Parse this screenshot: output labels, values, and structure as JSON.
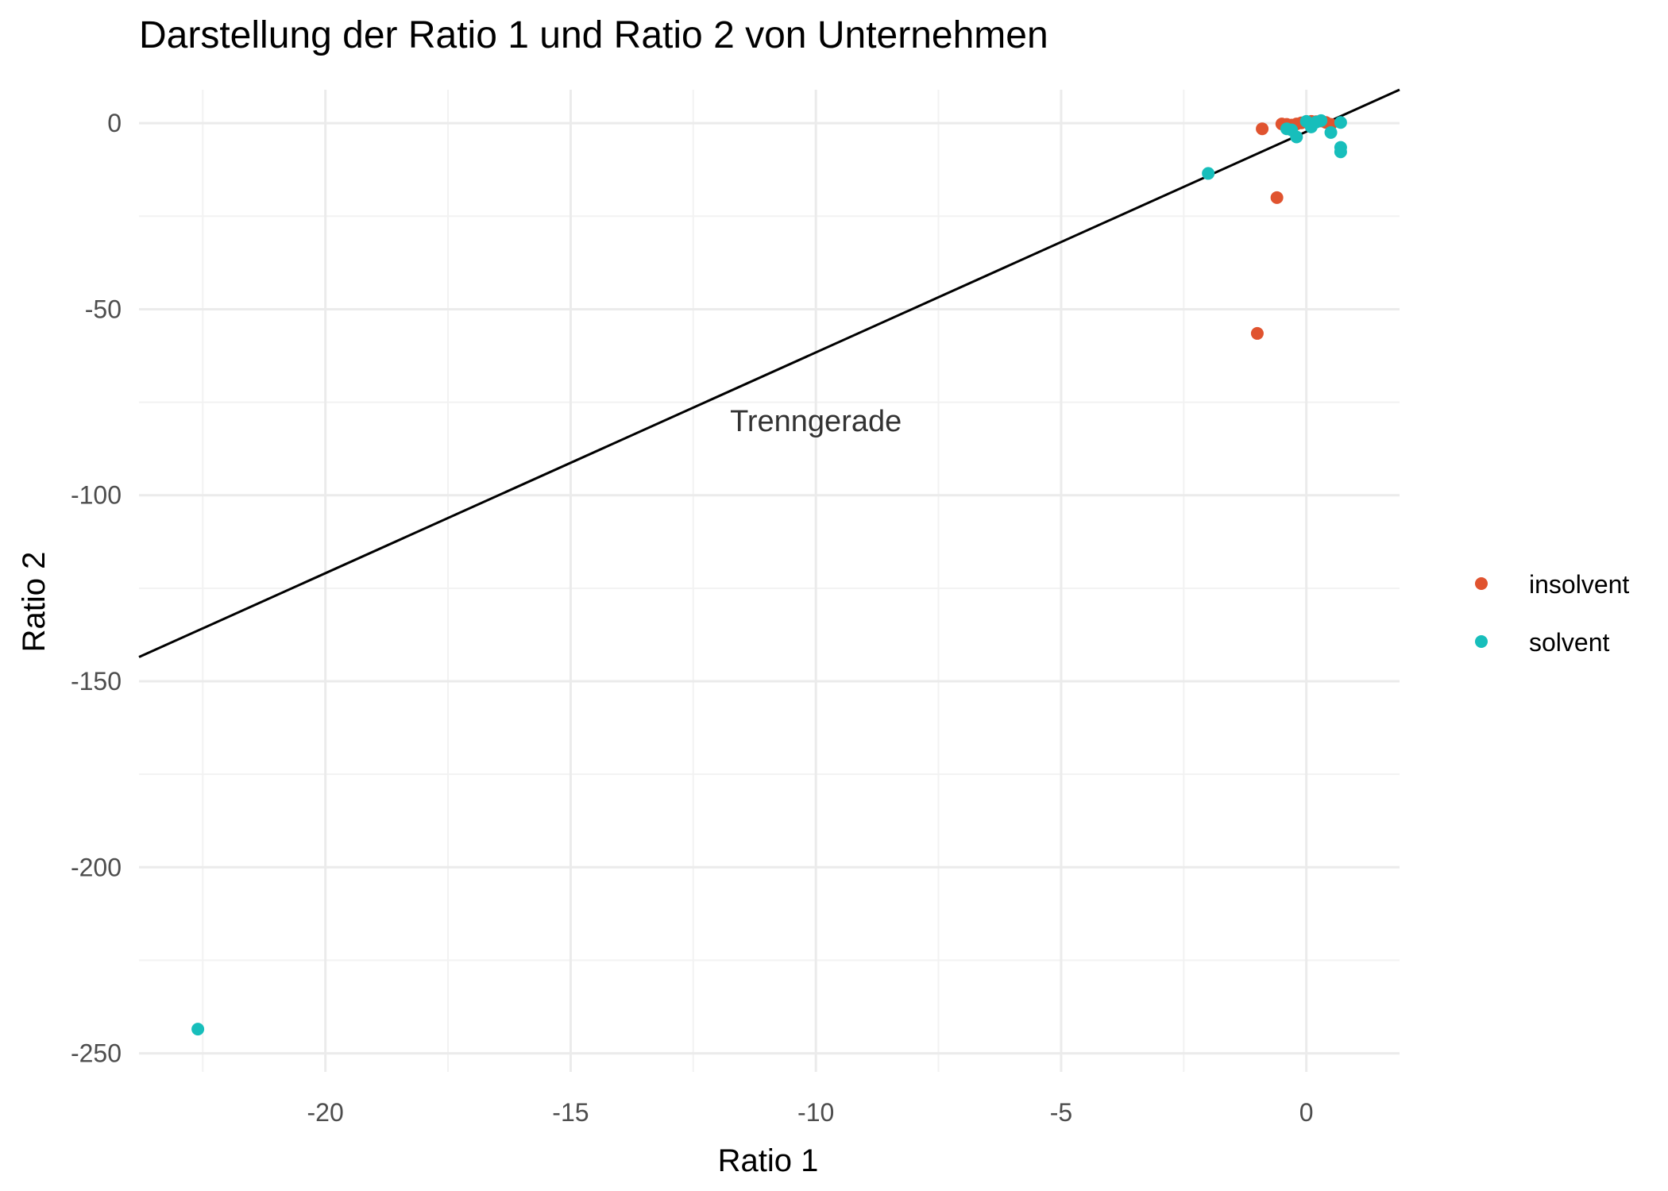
{
  "chart_data": {
    "type": "scatter",
    "title": "Darstellung der Ratio 1 und Ratio 2 von Unternehmen",
    "xlabel": "Ratio 1",
    "ylabel": "Ratio 2",
    "xlim": [
      -23.8,
      1.9
    ],
    "ylim": [
      -255,
      9
    ],
    "x_ticks": [
      -20,
      -15,
      -10,
      -5,
      0
    ],
    "y_ticks": [
      0,
      -50,
      -100,
      -150,
      -200,
      -250
    ],
    "grid": true,
    "legend_position": "right",
    "annotation": {
      "text": "Trenngerade",
      "x": -10,
      "y": -80
    },
    "line": {
      "name": "Trenngerade",
      "x1": -23.8,
      "y1": -143.5,
      "x2": 1.9,
      "y2": 9
    },
    "series": [
      {
        "name": "insolvent",
        "color": "#E0532F",
        "points": [
          [
            -0.9,
            -1.5
          ],
          [
            -0.6,
            -20
          ],
          [
            -1.0,
            -56.5
          ],
          [
            -0.5,
            -0.2
          ],
          [
            -0.4,
            -0.3
          ],
          [
            -0.3,
            -0.5
          ],
          [
            -0.2,
            -0.2
          ],
          [
            -0.1,
            0.1
          ],
          [
            0.0,
            0.3
          ],
          [
            0.1,
            0.5
          ],
          [
            0.2,
            0.4
          ],
          [
            0.3,
            0.6
          ],
          [
            0.4,
            0.2
          ],
          [
            0.5,
            -0.3
          ]
        ]
      },
      {
        "name": "solvent",
        "color": "#17BEBB",
        "points": [
          [
            -22.6,
            -243.5
          ],
          [
            -2.0,
            -13.5
          ],
          [
            -0.4,
            -1.5
          ],
          [
            -0.3,
            -1.8
          ],
          [
            -0.2,
            -3.7
          ],
          [
            0.0,
            0.5
          ],
          [
            0.1,
            -1.0
          ],
          [
            0.2,
            0.3
          ],
          [
            0.3,
            0.7
          ],
          [
            0.5,
            -2.5
          ],
          [
            0.7,
            -6.5
          ],
          [
            0.7,
            -7.7
          ],
          [
            0.7,
            0.2
          ]
        ]
      }
    ]
  }
}
